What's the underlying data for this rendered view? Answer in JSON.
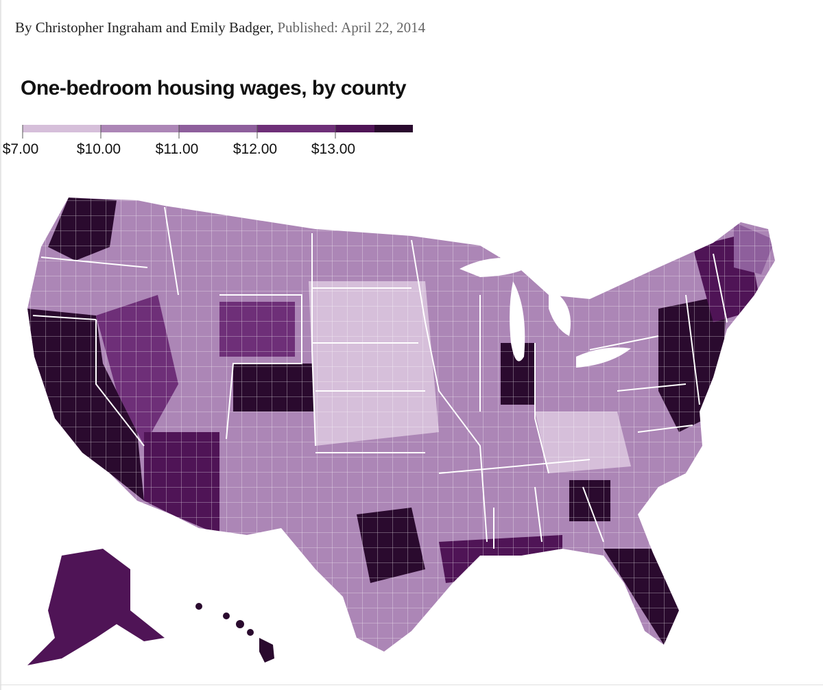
{
  "byline": {
    "authors": "By Christopher Ingraham and Emily Badger,",
    "published": "Published: April 22, 2014"
  },
  "title": "One-bedroom housing wages, by county",
  "legend": {
    "labels": [
      "$7.00",
      "$10.00",
      "$11.00",
      "$12.00",
      "$13.00"
    ],
    "colors": [
      "#d6bfda",
      "#ac86b6",
      "#8e5f9c",
      "#6e2f78",
      "#4f1456",
      "#2a0a2e"
    ]
  },
  "map": {
    "state_border_color": "#ffffff",
    "county_border_color": "#eadcec",
    "regions": [
      {
        "id": "pacific-coast",
        "level": 5
      },
      {
        "id": "washington-northwest",
        "level": 5
      },
      {
        "id": "nevada",
        "level": 3
      },
      {
        "id": "arizona",
        "level": 4
      },
      {
        "id": "colorado",
        "level": 5
      },
      {
        "id": "wyoming",
        "level": 3
      },
      {
        "id": "great-plains",
        "level": 0
      },
      {
        "id": "texas-metros",
        "level": 5
      },
      {
        "id": "gulf-coast",
        "level": 4
      },
      {
        "id": "florida",
        "level": 5
      },
      {
        "id": "atlanta",
        "level": 5
      },
      {
        "id": "chicago",
        "level": 5
      },
      {
        "id": "northeast-corridor",
        "level": 5
      },
      {
        "id": "new-england",
        "level": 4
      },
      {
        "id": "maine",
        "level": 2
      },
      {
        "id": "appalachia",
        "level": 0
      },
      {
        "id": "alaska",
        "level": 4
      },
      {
        "id": "hawaii",
        "level": 5
      }
    ]
  }
}
